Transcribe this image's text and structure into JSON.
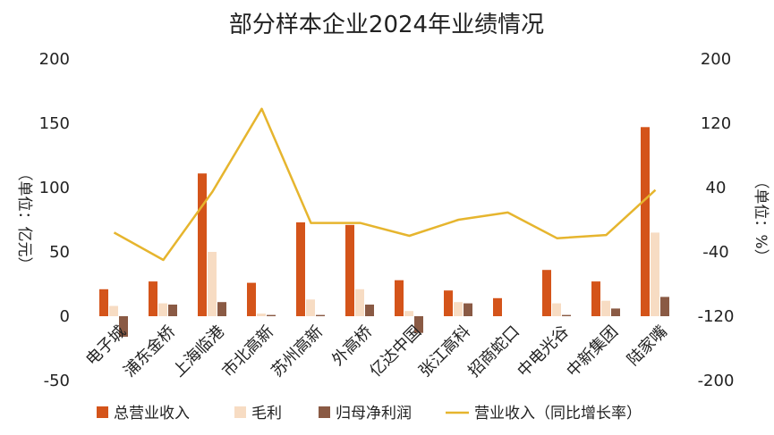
{
  "chart_data": {
    "type": "bar",
    "title": "部分样本企业2024年业绩情况",
    "ylabel_left": "（单位：亿元）",
    "ylabel_right": "（单位：%）",
    "ylim_left": [
      -50,
      200
    ],
    "ylim_right": [
      -200,
      200
    ],
    "yticks_left": [
      200,
      150,
      100,
      50,
      0,
      -50
    ],
    "yticks_right": [
      200,
      120,
      40,
      -40,
      -120,
      -200
    ],
    "ytick_labels_left": [
      "200",
      "150",
      "100",
      "50",
      "0",
      "-50"
    ],
    "ytick_labels_right": [
      "200",
      "120",
      "40",
      "-40",
      "-120",
      "-200"
    ],
    "categories": [
      "电子城",
      "浦东金桥",
      "上海临港",
      "市北高新",
      "苏州高新",
      "外高桥",
      "亿达中国",
      "张江高科",
      "招商蛇口",
      "中电光谷",
      "中新集团",
      "陆家嘴"
    ],
    "series": [
      {
        "name": "总营业收入",
        "type": "bar",
        "axis": "left",
        "color": "#d4541a",
        "values": [
          21,
          27,
          111,
          26,
          73,
          71,
          28,
          20,
          14,
          36,
          27,
          147
        ]
      },
      {
        "name": "毛利",
        "type": "bar",
        "axis": "left",
        "color": "#f7dcc3",
        "values": [
          8,
          10,
          50,
          2,
          13,
          21,
          4,
          11,
          0,
          10,
          12,
          65
        ]
      },
      {
        "name": "归母净利润",
        "type": "bar",
        "axis": "left",
        "color": "#8a5a44",
        "values": [
          -16,
          9,
          11,
          1,
          1,
          9,
          -13,
          10,
          0,
          1,
          6,
          15
        ]
      },
      {
        "name": "营业收入（同比增长率）",
        "type": "line",
        "axis": "right",
        "color": "#e6b52e",
        "values": [
          -16,
          -50,
          35,
          138,
          -4,
          -4,
          -20,
          0,
          9,
          -23,
          -19,
          37
        ]
      }
    ],
    "legend_position": "bottom",
    "grid": false,
    "legend": [
      "总营业收入",
      "毛利",
      "归母净利润",
      "营业收入（同比增长率）"
    ],
    "colors": {
      "revenue": "#d4541a",
      "gross_profit": "#f7dcc3",
      "net_profit": "#8a5a44",
      "growth_line": "#e6b52e"
    }
  }
}
